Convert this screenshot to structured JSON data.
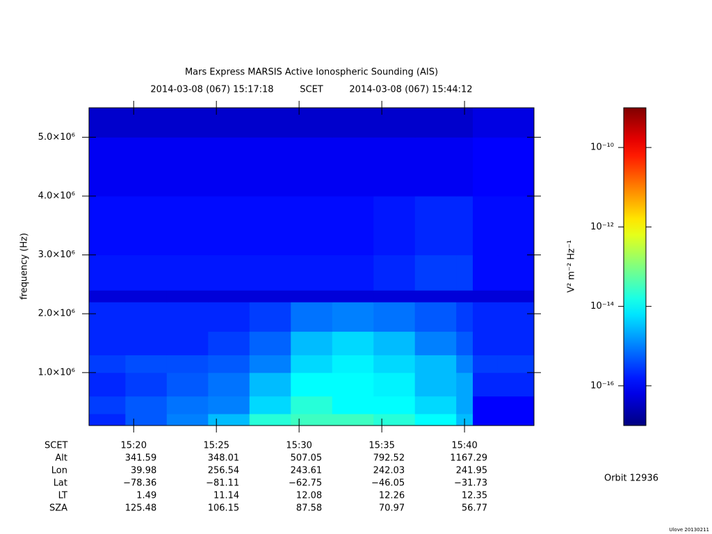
{
  "chart_data": {
    "type": "heatmap",
    "title": "Mars Express MARSIS Active Ionospheric Sounding (AIS)",
    "start_label": "2014-03-08 (067) 15:17:18",
    "time_system": "SCET",
    "end_label": "2014-03-08 (067) 15:44:12",
    "ylabel": "frequency (Hz)",
    "xlim": [
      "15:17:18",
      "15:44:12"
    ],
    "xticks": [
      "15:20",
      "15:25",
      "15:30",
      "15:35",
      "15:40"
    ],
    "ylim": [
      100000,
      5500000
    ],
    "yticks": [
      {
        "value": 1000000,
        "label": "1.0×10⁶"
      },
      {
        "value": 2000000,
        "label": "2.0×10⁶"
      },
      {
        "value": 3000000,
        "label": "3.0×10⁶"
      },
      {
        "value": 4000000,
        "label": "4.0×10⁶"
      },
      {
        "value": 5000000,
        "label": "5.0×10⁶"
      }
    ],
    "x_bins": [
      "15:17:18",
      "15:19:30",
      "15:22:00",
      "15:24:30",
      "15:27:00",
      "15:29:30",
      "15:32:00",
      "15:34:30",
      "15:37:00",
      "15:39:30",
      "15:40:30",
      "15:42:00",
      "15:44:12"
    ],
    "y_bins": [
      100000,
      300000,
      600000,
      1000000,
      1300000,
      1700000,
      2200000,
      2400000,
      3000000,
      4000000,
      5000000,
      5500000
    ],
    "z": [
      [
        2e-16,
        5e-16,
        1e-15,
        3e-15,
        2e-14,
        3e-14,
        3e-14,
        2e-14,
        1e-14,
        3e-15,
        1e-16,
        1e-16
      ],
      [
        3e-16,
        5e-16,
        8e-16,
        1e-15,
        5e-15,
        2e-14,
        1e-14,
        1e-14,
        5e-15,
        2e-15,
        1e-16,
        1e-16
      ],
      [
        2e-16,
        3e-16,
        5e-16,
        8e-16,
        3e-15,
        1e-14,
        1e-14,
        8e-15,
        3e-15,
        2e-15,
        2e-16,
        2e-16
      ],
      [
        3e-16,
        4e-16,
        4e-16,
        5e-16,
        1e-15,
        5e-15,
        8e-15,
        5e-15,
        3e-15,
        1e-15,
        3e-16,
        3e-16
      ],
      [
        2e-16,
        2e-16,
        2e-16,
        3e-16,
        6e-16,
        3e-15,
        5e-15,
        3e-15,
        1e-15,
        5e-16,
        2e-16,
        2e-16
      ],
      [
        2e-16,
        2e-16,
        2e-16,
        2e-16,
        3e-16,
        8e-16,
        1e-15,
        8e-16,
        5e-16,
        3e-16,
        2e-16,
        2e-16
      ],
      [
        5e-17,
        5e-17,
        5e-17,
        5e-17,
        5e-17,
        5e-17,
        5e-17,
        5e-17,
        5e-17,
        5e-17,
        5e-17,
        5e-17
      ],
      [
        1.5e-16,
        1.5e-16,
        1.5e-16,
        1.5e-16,
        1.5e-16,
        1.5e-16,
        1.5e-16,
        2e-16,
        3e-16,
        3e-16,
        1.2e-16,
        1.2e-16
      ],
      [
        1.2e-16,
        1.2e-16,
        1.2e-16,
        1.2e-16,
        1.2e-16,
        1.2e-16,
        1.2e-16,
        1.5e-16,
        2e-16,
        2e-16,
        1.2e-16,
        1.2e-16
      ],
      [
        8e-17,
        8e-17,
        8e-17,
        8e-17,
        8e-17,
        8e-17,
        8e-17,
        8e-17,
        8e-17,
        8e-17,
        1e-16,
        1e-16
      ],
      [
        4e-17,
        4e-17,
        4e-17,
        4e-17,
        4e-17,
        4e-17,
        4e-17,
        4e-17,
        4e-17,
        4e-17,
        6e-17,
        6e-17
      ]
    ],
    "colorscale": "jet",
    "clim": [
      1e-17,
      1e-09
    ],
    "clog": true,
    "cticks": [
      {
        "value": 1e-10,
        "label": "10⁻¹⁰"
      },
      {
        "value": 1e-12,
        "label": "10⁻¹²"
      },
      {
        "value": 1e-14,
        "label": "10⁻¹⁴"
      },
      {
        "value": 1e-16,
        "label": "10⁻¹⁶"
      }
    ],
    "colorbar_label": "V² m⁻² Hz⁻¹",
    "ephemeris": {
      "header": "SCET",
      "rows": [
        {
          "label": "Alt",
          "values": [
            "341.59",
            "348.01",
            "507.05",
            "792.52",
            "1167.29"
          ]
        },
        {
          "label": "Lon",
          "values": [
            "39.98",
            "256.54",
            "243.61",
            "242.03",
            "241.95"
          ]
        },
        {
          "label": "Lat",
          "values": [
            "−78.36",
            "−81.11",
            "−62.75",
            "−46.05",
            "−31.73"
          ]
        },
        {
          "label": "LT",
          "values": [
            "1.49",
            "11.14",
            "12.08",
            "12.26",
            "12.35"
          ]
        },
        {
          "label": "SZA",
          "values": [
            "125.48",
            "106.15",
            "87.58",
            "70.97",
            "56.77"
          ]
        }
      ]
    },
    "orbit": "Orbit 12936",
    "footnote": "Ulove 20130211"
  }
}
